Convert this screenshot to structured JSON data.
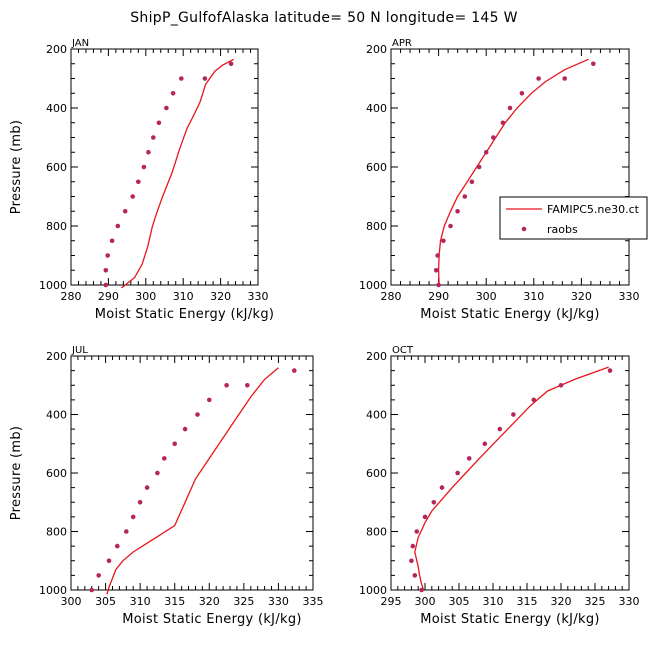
{
  "title": "ShipP_GulfofAlaska  latitude= 50 N longitude= 145 W",
  "colors": {
    "model": "#e8151b",
    "obs": "#b5265b"
  },
  "legend": {
    "model_label": "FAMIPC5.ne30.ct",
    "obs_label": "raobs"
  },
  "chart_data": [
    {
      "type": "line",
      "panel": "JAN",
      "xlabel": "Moist Static Energy (kJ/kg)",
      "ylabel": "Pressure (mb)",
      "xlim": [
        280,
        330
      ],
      "ylim": [
        1000,
        200
      ],
      "xticks": [
        280,
        290,
        300,
        310,
        320,
        330
      ],
      "yticks": [
        200,
        400,
        600,
        800,
        1000
      ],
      "series": [
        {
          "name": "FAMIPC5.ne30.ct",
          "style": "line",
          "points": [
            [
              293.5,
              1010
            ],
            [
              297,
              975
            ],
            [
              299,
              930
            ],
            [
              300.5,
              870
            ],
            [
              301.8,
              800
            ],
            [
              302.8,
              760
            ],
            [
              304.5,
              700
            ],
            [
              307,
              620
            ],
            [
              309,
              540
            ],
            [
              311,
              470
            ],
            [
              313,
              420
            ],
            [
              314.5,
              380
            ],
            [
              316,
              320
            ],
            [
              318.5,
              275
            ],
            [
              320.5,
              255
            ],
            [
              323.5,
              235
            ]
          ]
        },
        {
          "name": "raobs",
          "style": "marker",
          "points": [
            [
              289.3,
              1000
            ],
            [
              289.3,
              950
            ],
            [
              289.8,
              900
            ],
            [
              291,
              850
            ],
            [
              292.5,
              800
            ],
            [
              294.5,
              750
            ],
            [
              296.5,
              700
            ],
            [
              298,
              650
            ],
            [
              299.5,
              600
            ],
            [
              300.7,
              550
            ],
            [
              302,
              500
            ],
            [
              303.5,
              450
            ],
            [
              305.5,
              400
            ],
            [
              307.3,
              350
            ],
            [
              309.5,
              300
            ],
            [
              315.8,
              300
            ],
            [
              322.8,
              250
            ]
          ]
        }
      ]
    },
    {
      "type": "line",
      "panel": "APR",
      "xlabel": "Moist Static Energy (kJ/kg)",
      "ylabel": "",
      "xlim": [
        280,
        330
      ],
      "ylim": [
        1000,
        200
      ],
      "xticks": [
        280,
        290,
        300,
        310,
        320,
        330
      ],
      "yticks": [
        200,
        400,
        600,
        800,
        1000
      ],
      "series": [
        {
          "name": "FAMIPC5.ne30.ct",
          "style": "line",
          "points": [
            [
              290.1,
              1000
            ],
            [
              290,
              950
            ],
            [
              290.1,
              900
            ],
            [
              290.4,
              850
            ],
            [
              291.2,
              800
            ],
            [
              292.5,
              750
            ],
            [
              294,
              700
            ],
            [
              296,
              650
            ],
            [
              298,
              600
            ],
            [
              300,
              550
            ],
            [
              302,
              500
            ],
            [
              304,
              450
            ],
            [
              306.5,
              400
            ],
            [
              309.5,
              350
            ],
            [
              312.5,
              310
            ],
            [
              316.5,
              270
            ],
            [
              321.5,
              235
            ]
          ]
        },
        {
          "name": "raobs",
          "style": "marker",
          "points": [
            [
              290,
              1000
            ],
            [
              289.5,
              950
            ],
            [
              289.8,
              900
            ],
            [
              291,
              850
            ],
            [
              292.5,
              800
            ],
            [
              294,
              750
            ],
            [
              295.5,
              700
            ],
            [
              297,
              650
            ],
            [
              298.5,
              600
            ],
            [
              300,
              550
            ],
            [
              301.5,
              500
            ],
            [
              303.5,
              450
            ],
            [
              305,
              400
            ],
            [
              307.5,
              350
            ],
            [
              311,
              300
            ],
            [
              316.5,
              300
            ],
            [
              322.5,
              250
            ]
          ]
        }
      ]
    },
    {
      "type": "line",
      "panel": "JUL",
      "xlabel": "Moist Static Energy (kJ/kg)",
      "ylabel": "Pressure (mb)",
      "xlim": [
        300,
        335
      ],
      "ylim": [
        1000,
        200
      ],
      "xticks": [
        300,
        305,
        310,
        315,
        320,
        325,
        330,
        335
      ],
      "yticks": [
        200,
        400,
        600,
        800,
        1000
      ],
      "series": [
        {
          "name": "FAMIPC5.ne30.ct",
          "style": "line",
          "points": [
            [
              305.2,
              1015
            ],
            [
              305.5,
              990
            ],
            [
              306,
              960
            ],
            [
              306.5,
              930
            ],
            [
              307.5,
              900
            ],
            [
              309,
              870
            ],
            [
              311,
              840
            ],
            [
              313,
              810
            ],
            [
              315,
              780
            ],
            [
              316.5,
              700
            ],
            [
              318,
              620
            ],
            [
              320,
              550
            ],
            [
              322,
              480
            ],
            [
              324,
              410
            ],
            [
              326,
              340
            ],
            [
              328,
              280
            ],
            [
              330,
              240
            ]
          ]
        },
        {
          "name": "raobs",
          "style": "marker",
          "points": [
            [
              303,
              1000
            ],
            [
              304,
              950
            ],
            [
              305.5,
              900
            ],
            [
              306.7,
              850
            ],
            [
              308,
              800
            ],
            [
              309,
              750
            ],
            [
              310,
              700
            ],
            [
              311,
              650
            ],
            [
              312.5,
              600
            ],
            [
              313.5,
              550
            ],
            [
              315,
              500
            ],
            [
              316.5,
              450
            ],
            [
              318.3,
              400
            ],
            [
              320,
              350
            ],
            [
              322.5,
              300
            ],
            [
              325.5,
              300
            ],
            [
              332.3,
              250
            ]
          ]
        }
      ]
    },
    {
      "type": "line",
      "panel": "OCT",
      "xlabel": "Moist Static Energy (kJ/kg)",
      "ylabel": "",
      "xlim": [
        295,
        330
      ],
      "ylim": [
        1000,
        200
      ],
      "xticks": [
        295,
        300,
        305,
        310,
        315,
        320,
        325,
        330
      ],
      "yticks": [
        200,
        400,
        600,
        800,
        1000
      ],
      "series": [
        {
          "name": "FAMIPC5.ne30.ct",
          "style": "line",
          "points": [
            [
              299.8,
              1000
            ],
            [
              299.5,
              980
            ],
            [
              299.2,
              950
            ],
            [
              299,
              920
            ],
            [
              298.5,
              870
            ],
            [
              299,
              820
            ],
            [
              300,
              770
            ],
            [
              301,
              730
            ],
            [
              302.5,
              690
            ],
            [
              304,
              650
            ],
            [
              306,
              600
            ],
            [
              308,
              550
            ],
            [
              310.5,
              490
            ],
            [
              313,
              430
            ],
            [
              315.5,
              370
            ],
            [
              318,
              320
            ],
            [
              322,
              280
            ],
            [
              327,
              238
            ]
          ]
        },
        {
          "name": "raobs",
          "style": "marker",
          "points": [
            [
              299.5,
              1000
            ],
            [
              298.5,
              950
            ],
            [
              298,
              900
            ],
            [
              298.2,
              850
            ],
            [
              298.8,
              800
            ],
            [
              300,
              750
            ],
            [
              301.3,
              700
            ],
            [
              302.5,
              650
            ],
            [
              304.8,
              600
            ],
            [
              306.5,
              550
            ],
            [
              308.8,
              500
            ],
            [
              311,
              450
            ],
            [
              313,
              400
            ],
            [
              316,
              350
            ],
            [
              320,
              300
            ],
            [
              327.2,
              250
            ]
          ]
        }
      ]
    }
  ]
}
